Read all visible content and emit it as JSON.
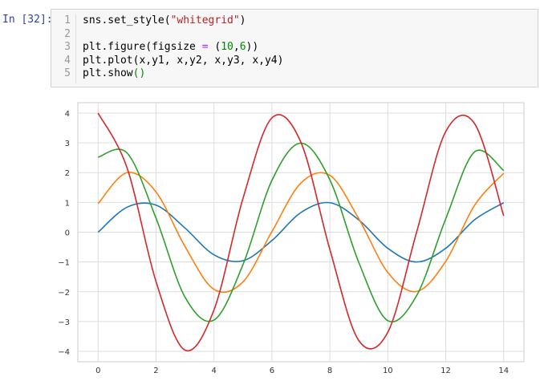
{
  "cell": {
    "prompt": "In [32]:",
    "line_numbers": [
      "1",
      "2",
      "3",
      "4",
      "5"
    ],
    "lines": [
      [
        {
          "t": "sns.set_style(",
          "c": ""
        },
        {
          "t": "\"whitegrid\"",
          "c": "str"
        },
        {
          "t": ")",
          "c": ""
        }
      ],
      [],
      [
        {
          "t": "plt.figure(figsize ",
          "c": ""
        },
        {
          "t": "=",
          "c": "op"
        },
        {
          "t": " (",
          "c": ""
        },
        {
          "t": "10",
          "c": "num"
        },
        {
          "t": ",",
          "c": ""
        },
        {
          "t": "6",
          "c": "num"
        },
        {
          "t": "))",
          "c": ""
        }
      ],
      [
        {
          "t": "plt.plot(x,y1, x,y2, x,y3, x,y4)",
          "c": ""
        }
      ],
      [
        {
          "t": "plt.show",
          "c": ""
        },
        {
          "t": "()",
          "c": "br"
        }
      ]
    ]
  },
  "chart_data": {
    "type": "line",
    "title": "",
    "xlabel": "",
    "ylabel": "",
    "xlim": [
      -0.7,
      14.7
    ],
    "ylim": [
      -4.35,
      4.35
    ],
    "xticks": [
      0,
      2,
      4,
      6,
      8,
      10,
      12,
      14
    ],
    "yticks": [
      4,
      3,
      2,
      1,
      0,
      -1,
      -2,
      -3,
      -4
    ],
    "grid": true,
    "series": [
      {
        "color": "#1f77b4",
        "x": [
          0,
          1,
          2,
          3,
          4,
          5,
          6,
          7,
          8,
          9,
          10,
          11,
          12,
          13,
          14
        ],
        "values": [
          0,
          0.84,
          0.91,
          0.14,
          -0.76,
          -0.96,
          -0.28,
          0.66,
          0.99,
          0.41,
          -0.54,
          -1.0,
          -0.54,
          0.42,
          0.99
        ]
      },
      {
        "color": "#ff7f0e",
        "x": [
          0,
          1,
          2,
          3,
          4,
          5,
          6,
          7,
          8,
          9,
          10,
          11,
          12,
          13,
          14
        ],
        "values": [
          0.96,
          2.0,
          1.35,
          -0.48,
          -1.92,
          -1.67,
          0.02,
          1.65,
          1.91,
          0.45,
          -1.35,
          -1.99,
          -0.98,
          0.91,
          1.98
        ]
      },
      {
        "color": "#2ca02c",
        "x": [
          0,
          1,
          2,
          3,
          4,
          5,
          6,
          7,
          8,
          9,
          10,
          11,
          12,
          13,
          14
        ],
        "values": [
          2.52,
          2.66,
          0.47,
          -2.18,
          -2.95,
          -1.09,
          1.74,
          2.99,
          1.76,
          -1.02,
          -2.97,
          -2.12,
          0.45,
          2.7,
          2.07
        ]
      },
      {
        "color": "#d62728",
        "x": [
          0,
          1,
          2,
          3,
          4,
          5,
          6,
          7,
          8,
          9,
          10,
          11,
          12,
          13,
          14
        ],
        "values": [
          4.0,
          2.16,
          -1.66,
          -3.96,
          -2.61,
          1.13,
          3.84,
          3.02,
          -0.58,
          -3.64,
          -3.36,
          0.02,
          3.38,
          3.64,
          0.55
        ]
      }
    ]
  }
}
